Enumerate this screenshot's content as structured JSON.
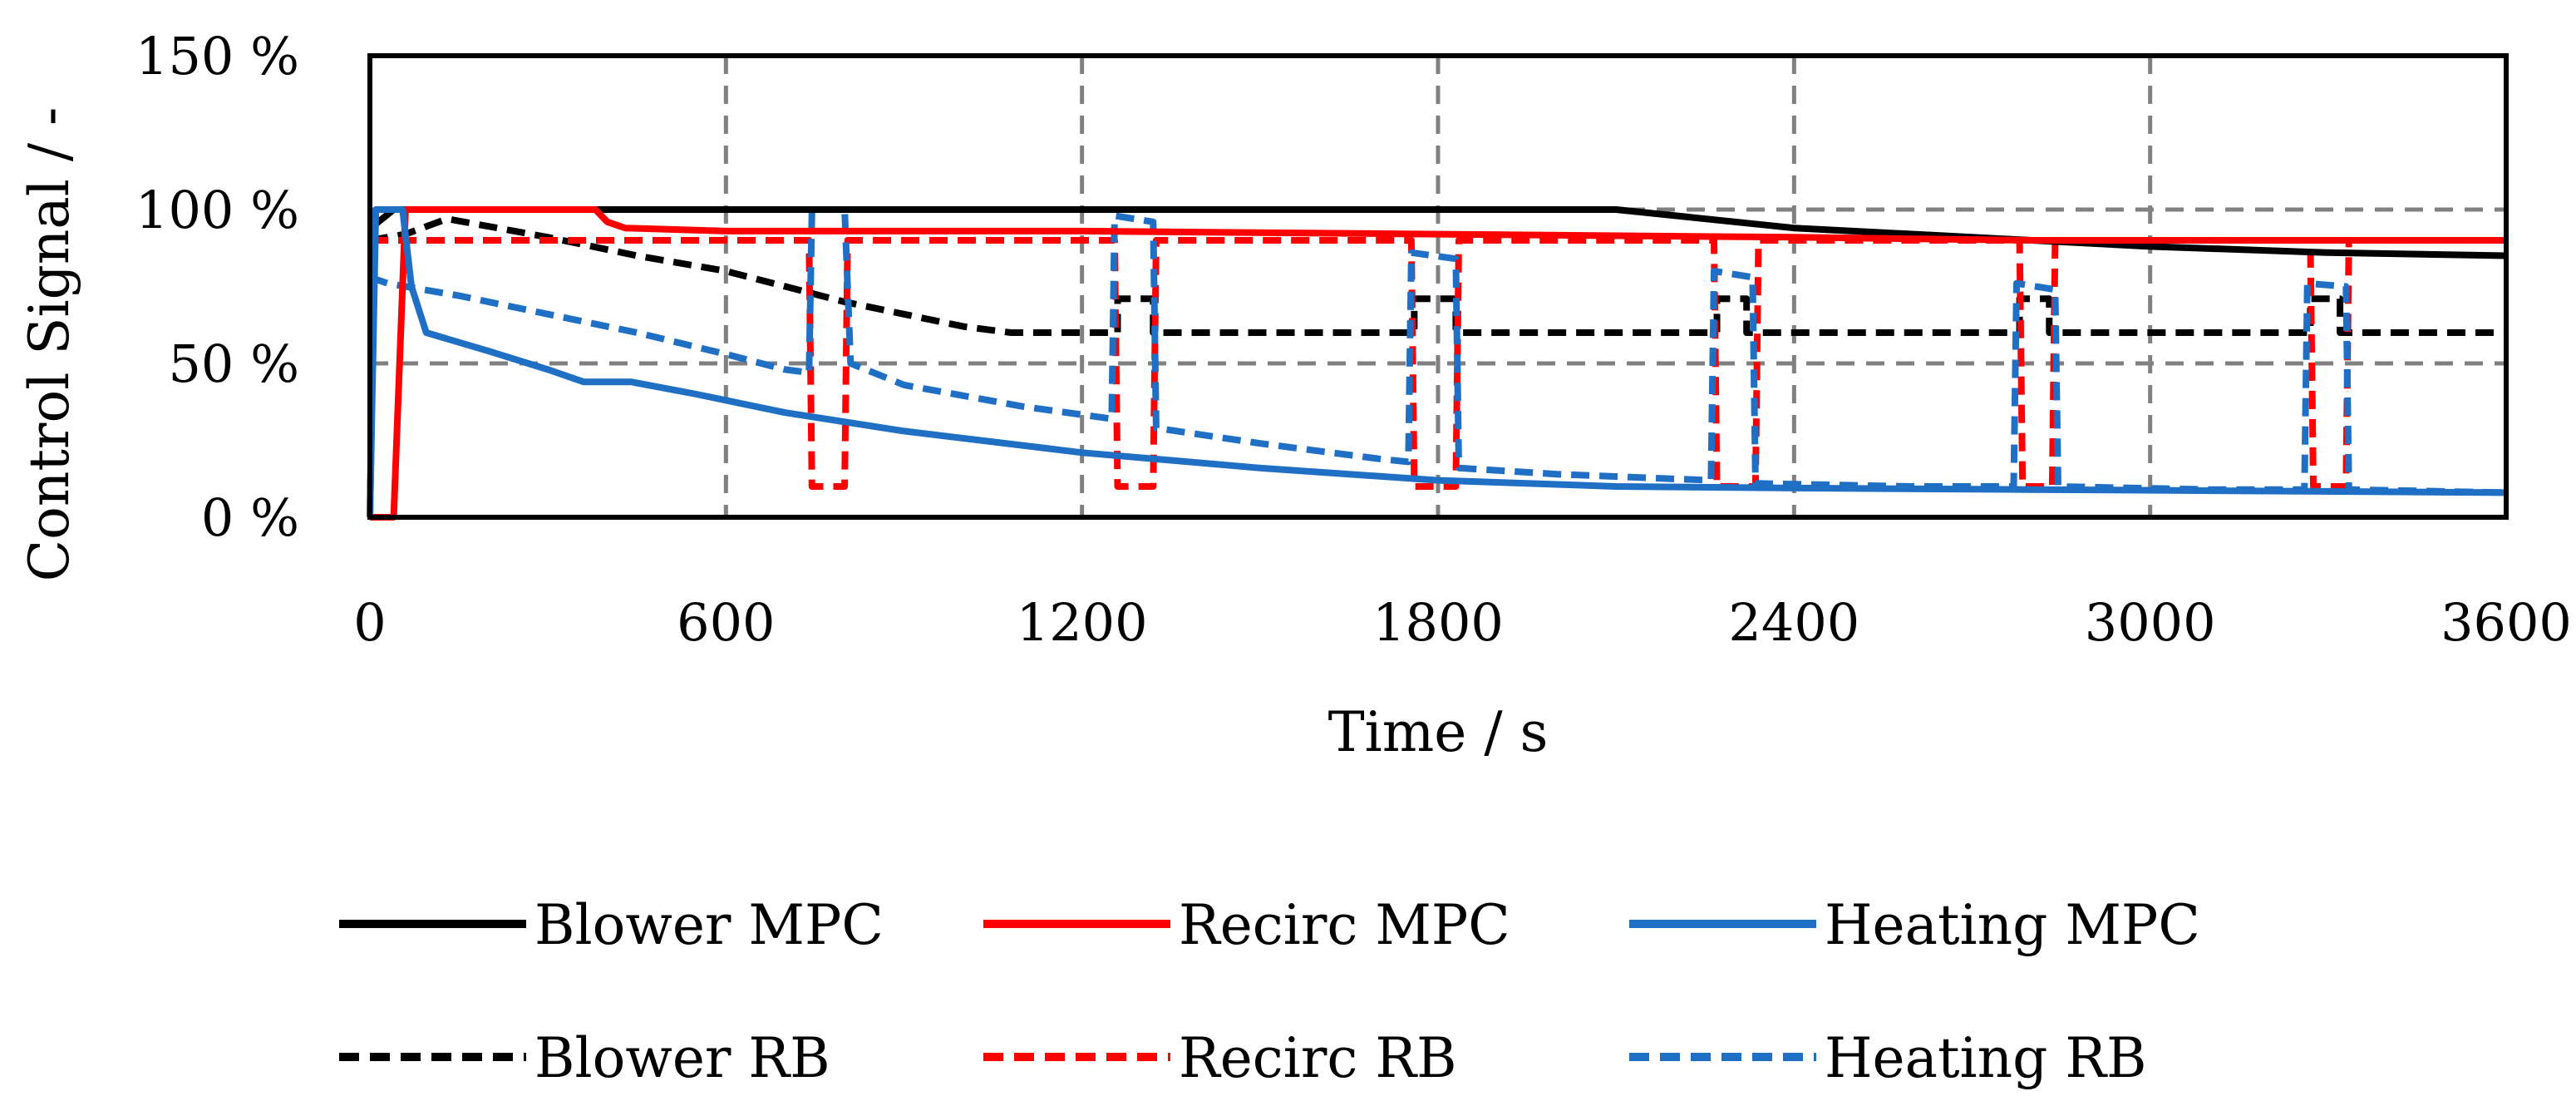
{
  "chart_data": {
    "type": "line",
    "title": "",
    "xlabel": "Time / s",
    "ylabel": "Control Signal / -",
    "xlim": [
      0,
      3600
    ],
    "ylim": [
      0,
      150
    ],
    "xticks": [
      0,
      600,
      1200,
      1800,
      2400,
      3000,
      3600
    ],
    "yticks": [
      0,
      50,
      100,
      150
    ],
    "xtick_labels": [
      "0",
      "600",
      "1200",
      "1800",
      "2400",
      "3000",
      "3600"
    ],
    "ytick_labels": [
      "0 %",
      "50 %",
      "100 %",
      "150 %"
    ],
    "grid": true,
    "legend_position": "bottom",
    "series": [
      {
        "name": "Blower MPC",
        "color": "#000000",
        "style": "solid",
        "points": [
          [
            0,
            0
          ],
          [
            8,
            95
          ],
          [
            40,
            100
          ],
          [
            100,
            100
          ],
          [
            600,
            100
          ],
          [
            1200,
            100
          ],
          [
            1800,
            100
          ],
          [
            2100,
            100
          ],
          [
            2200,
            98
          ],
          [
            2400,
            94
          ],
          [
            2700,
            91
          ],
          [
            3000,
            88
          ],
          [
            3300,
            86
          ],
          [
            3600,
            85
          ]
        ]
      },
      {
        "name": "Recirc MPC",
        "color": "#ff0000",
        "style": "solid",
        "points": [
          [
            0,
            0
          ],
          [
            40,
            0
          ],
          [
            60,
            100
          ],
          [
            100,
            100
          ],
          [
            380,
            100
          ],
          [
            400,
            96
          ],
          [
            430,
            94
          ],
          [
            600,
            93
          ],
          [
            1200,
            93
          ],
          [
            1800,
            92
          ],
          [
            2400,
            91
          ],
          [
            2800,
            90
          ],
          [
            3600,
            90
          ]
        ]
      },
      {
        "name": "Heating MPC",
        "color": "#1f6fc5",
        "style": "solid",
        "points": [
          [
            0,
            0
          ],
          [
            10,
            100
          ],
          [
            55,
            100
          ],
          [
            70,
            75
          ],
          [
            95,
            60
          ],
          [
            130,
            58
          ],
          [
            200,
            54
          ],
          [
            300,
            48
          ],
          [
            360,
            44
          ],
          [
            400,
            44
          ],
          [
            440,
            44
          ],
          [
            550,
            40
          ],
          [
            700,
            34
          ],
          [
            900,
            28
          ],
          [
            1200,
            21
          ],
          [
            1500,
            16
          ],
          [
            1800,
            12
          ],
          [
            2100,
            10
          ],
          [
            2400,
            9.5
          ],
          [
            2800,
            9
          ],
          [
            3200,
            8.5
          ],
          [
            3600,
            8
          ]
        ]
      },
      {
        "name": "Blower RB",
        "color": "#000000",
        "style": "dashed",
        "points": [
          [
            0,
            90
          ],
          [
            60,
            92
          ],
          [
            130,
            97
          ],
          [
            300,
            91
          ],
          [
            450,
            85
          ],
          [
            600,
            80
          ],
          [
            760,
            72
          ],
          [
            800,
            70
          ],
          [
            900,
            66
          ],
          [
            1000,
            62
          ],
          [
            1080,
            60
          ],
          [
            1200,
            60
          ],
          [
            1260,
            60
          ],
          [
            1260,
            71
          ],
          [
            1320,
            71
          ],
          [
            1320,
            60
          ],
          [
            1760,
            60
          ],
          [
            1760,
            71
          ],
          [
            1830,
            71
          ],
          [
            1830,
            60
          ],
          [
            2270,
            60
          ],
          [
            2270,
            71
          ],
          [
            2320,
            71
          ],
          [
            2320,
            60
          ],
          [
            2780,
            60
          ],
          [
            2780,
            71
          ],
          [
            2830,
            71
          ],
          [
            2830,
            60
          ],
          [
            3270,
            60
          ],
          [
            3270,
            71
          ],
          [
            3320,
            71
          ],
          [
            3320,
            60
          ],
          [
            3600,
            60
          ]
        ]
      },
      {
        "name": "Recirc RB",
        "color": "#ff0000",
        "style": "dashed",
        "points": [
          [
            0,
            90
          ],
          [
            740,
            90
          ],
          [
            745,
            10
          ],
          [
            800,
            10
          ],
          [
            805,
            90
          ],
          [
            1255,
            90
          ],
          [
            1260,
            10
          ],
          [
            1320,
            10
          ],
          [
            1325,
            90
          ],
          [
            1755,
            90
          ],
          [
            1760,
            10
          ],
          [
            1830,
            10
          ],
          [
            1835,
            90
          ],
          [
            2265,
            90
          ],
          [
            2270,
            10
          ],
          [
            2335,
            10
          ],
          [
            2340,
            90
          ],
          [
            2780,
            90
          ],
          [
            2785,
            10
          ],
          [
            2835,
            10
          ],
          [
            2840,
            90
          ],
          [
            3270,
            90
          ],
          [
            3275,
            10
          ],
          [
            3330,
            10
          ],
          [
            3335,
            90
          ],
          [
            3600,
            90
          ]
        ]
      },
      {
        "name": "Heating RB",
        "color": "#1f6fc5",
        "style": "dashed",
        "points": [
          [
            0,
            78
          ],
          [
            30,
            76
          ],
          [
            60,
            75
          ],
          [
            150,
            72
          ],
          [
            300,
            66
          ],
          [
            450,
            60
          ],
          [
            600,
            53
          ],
          [
            700,
            48
          ],
          [
            740,
            47
          ],
          [
            745,
            100
          ],
          [
            800,
            100
          ],
          [
            810,
            50
          ],
          [
            900,
            43
          ],
          [
            1100,
            36
          ],
          [
            1250,
            32
          ],
          [
            1255,
            98
          ],
          [
            1320,
            96
          ],
          [
            1325,
            29
          ],
          [
            1500,
            24
          ],
          [
            1700,
            19
          ],
          [
            1750,
            18
          ],
          [
            1755,
            86
          ],
          [
            1830,
            84
          ],
          [
            1835,
            16
          ],
          [
            2000,
            14
          ],
          [
            2260,
            12
          ],
          [
            2265,
            80
          ],
          [
            2330,
            78
          ],
          [
            2335,
            11
          ],
          [
            2600,
            10
          ],
          [
            2770,
            10
          ],
          [
            2775,
            76
          ],
          [
            2840,
            74
          ],
          [
            2845,
            10
          ],
          [
            3100,
            9
          ],
          [
            3260,
            9
          ],
          [
            3265,
            76
          ],
          [
            3330,
            75
          ],
          [
            3335,
            9
          ],
          [
            3600,
            8
          ]
        ]
      }
    ]
  }
}
